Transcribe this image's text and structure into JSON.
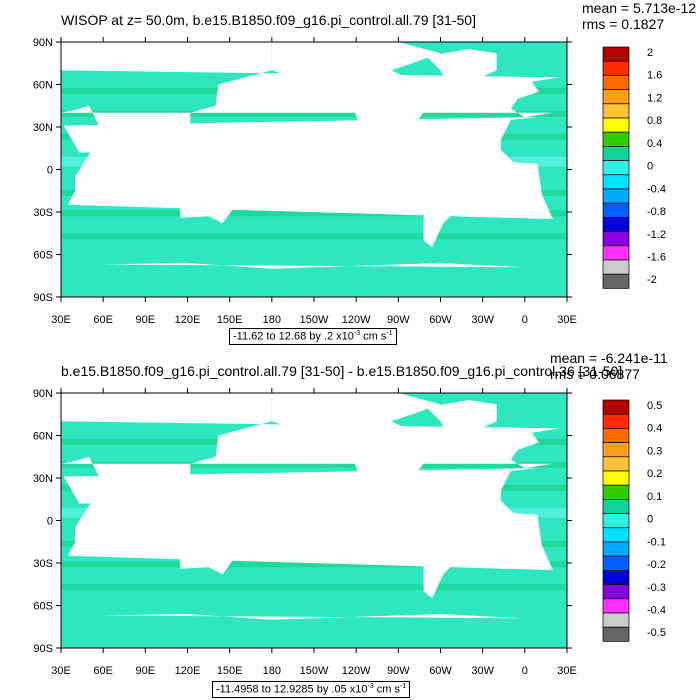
{
  "panels": [
    {
      "title": "WISOP at z=  50.0m, b.e15.B1850.f09_g16.pi_control.all.79 [31-50]",
      "mean": "mean = 5.713e-12",
      "rms": "rms = 0.1827",
      "lat_labels": [
        "90N",
        "60N",
        "30N",
        "0",
        "30S",
        "60S",
        "90S"
      ],
      "lon_labels": [
        "30E",
        "60E",
        "90E",
        "120E",
        "150E",
        "180",
        "150W",
        "120W",
        "90W",
        "60W",
        "30W",
        "0",
        "30E"
      ],
      "colorbar_labels": [
        "2",
        "1.6",
        "1.2",
        "0.8",
        "0.4",
        "0",
        "-0.4",
        "-0.8",
        "-1.2",
        "-1.6",
        "-2"
      ],
      "range_text": "-11.62 to 12.68 by .2 x10",
      "range_exp": "-3",
      "range_unit": " cm s",
      "range_unit_exp": "-1"
    },
    {
      "title": "b.e15.B1850.f09_g16.pi_control.all.79 [31-50] - b.e15.B1850.f09_g16.pi_control.36 [31-50]",
      "mean": "mean = -6.241e-11",
      "rms": "rms = 0.06877",
      "lat_labels": [
        "90N",
        "60N",
        "30N",
        "0",
        "30S",
        "60S",
        "90S"
      ],
      "lon_labels": [
        "30E",
        "60E",
        "90E",
        "120E",
        "150E",
        "180",
        "150W",
        "120W",
        "90W",
        "60W",
        "30W",
        "0",
        "30E"
      ],
      "colorbar_labels": [
        "0.5",
        "0.4",
        "0.3",
        "0.2",
        "0.1",
        "0",
        "-0.1",
        "-0.2",
        "-0.3",
        "-0.4",
        "-0.5"
      ],
      "range_text": "-11.4958 to 12.9285 by .05 x10",
      "range_exp": "-3",
      "range_unit": " cm s",
      "range_unit_exp": "-1"
    }
  ],
  "colors": {
    "ocean": "#2ee6c0",
    "ocean_band": "#1ed18a",
    "ocean_light": "#5cf2e0",
    "land": "#ffffff",
    "colorbar": [
      "#b30000",
      "#ff2a00",
      "#ff6a00",
      "#ff9f1c",
      "#ffc23a",
      "#ffff00",
      "#33cc00",
      "#11d49a",
      "#33f0e6",
      "#00e0ff",
      "#00aaff",
      "#0060ff",
      "#0000dd",
      "#8a00dd",
      "#ff33ff",
      "#cccccc",
      "#666666"
    ]
  }
}
